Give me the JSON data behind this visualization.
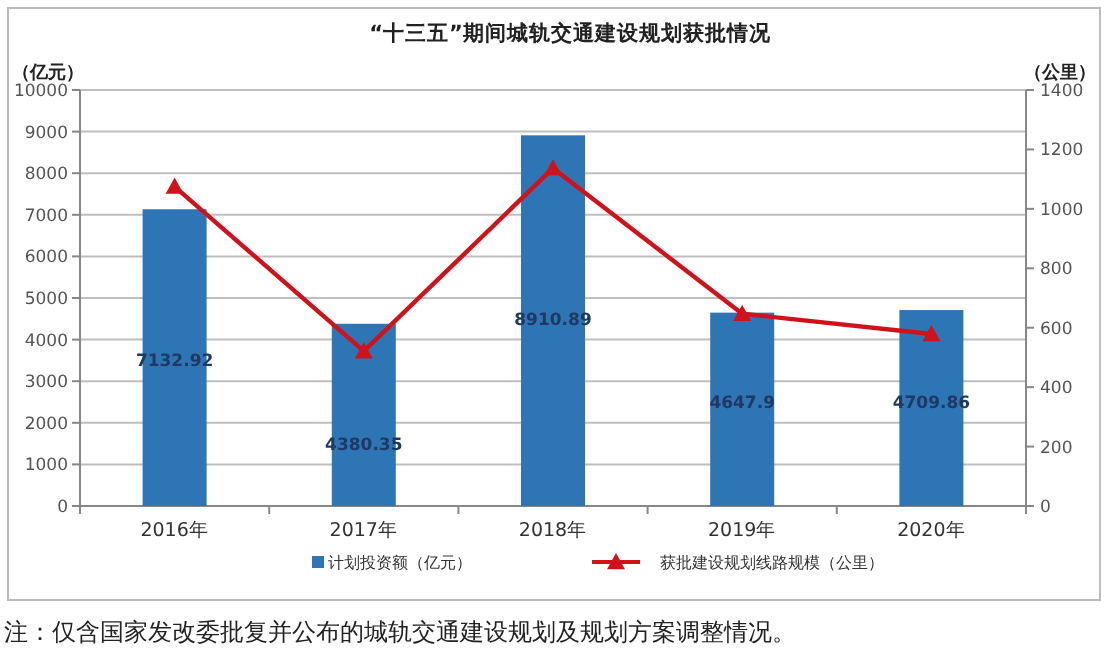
{
  "chart_data": {
    "type": "bar",
    "title": "“十三五”期间城轨交通建设规划获批情况",
    "ylabel": "（亿元）",
    "y2label": "（公里）",
    "categories": [
      "2016年",
      "2017年",
      "2018年",
      "2019年",
      "2020年"
    ],
    "series": [
      {
        "name": "计划投资额（亿元）",
        "color": "#2e75b6",
        "values": [
          7132.92,
          4380.35,
          8910.89,
          4647.9,
          4709.86
        ],
        "value_labels": [
          "7132.92",
          "4380.35",
          "8910.89",
          "4647.9",
          "4709.86"
        ]
      },
      {
        "name": "获批建设规划线路规模（公里）",
        "type": "line",
        "axis": "y2",
        "color": "#d0121b",
        "marker": "triangle",
        "values": [
          1075,
          521,
          1137,
          647,
          579
        ]
      }
    ],
    "ylim": [
      0,
      10000
    ],
    "yticks": [
      0,
      1000,
      2000,
      3000,
      4000,
      5000,
      6000,
      7000,
      8000,
      9000,
      10000
    ],
    "y2lim": [
      0,
      1400
    ],
    "y2ticks": [
      0,
      200,
      400,
      600,
      800,
      1000,
      1200,
      1400
    ],
    "grid": "y",
    "legend": "bottom",
    "annotations": [
      "注：仅含国家发改委批复并公布的城轨交通建设规划及规划方案调整情况。"
    ]
  }
}
